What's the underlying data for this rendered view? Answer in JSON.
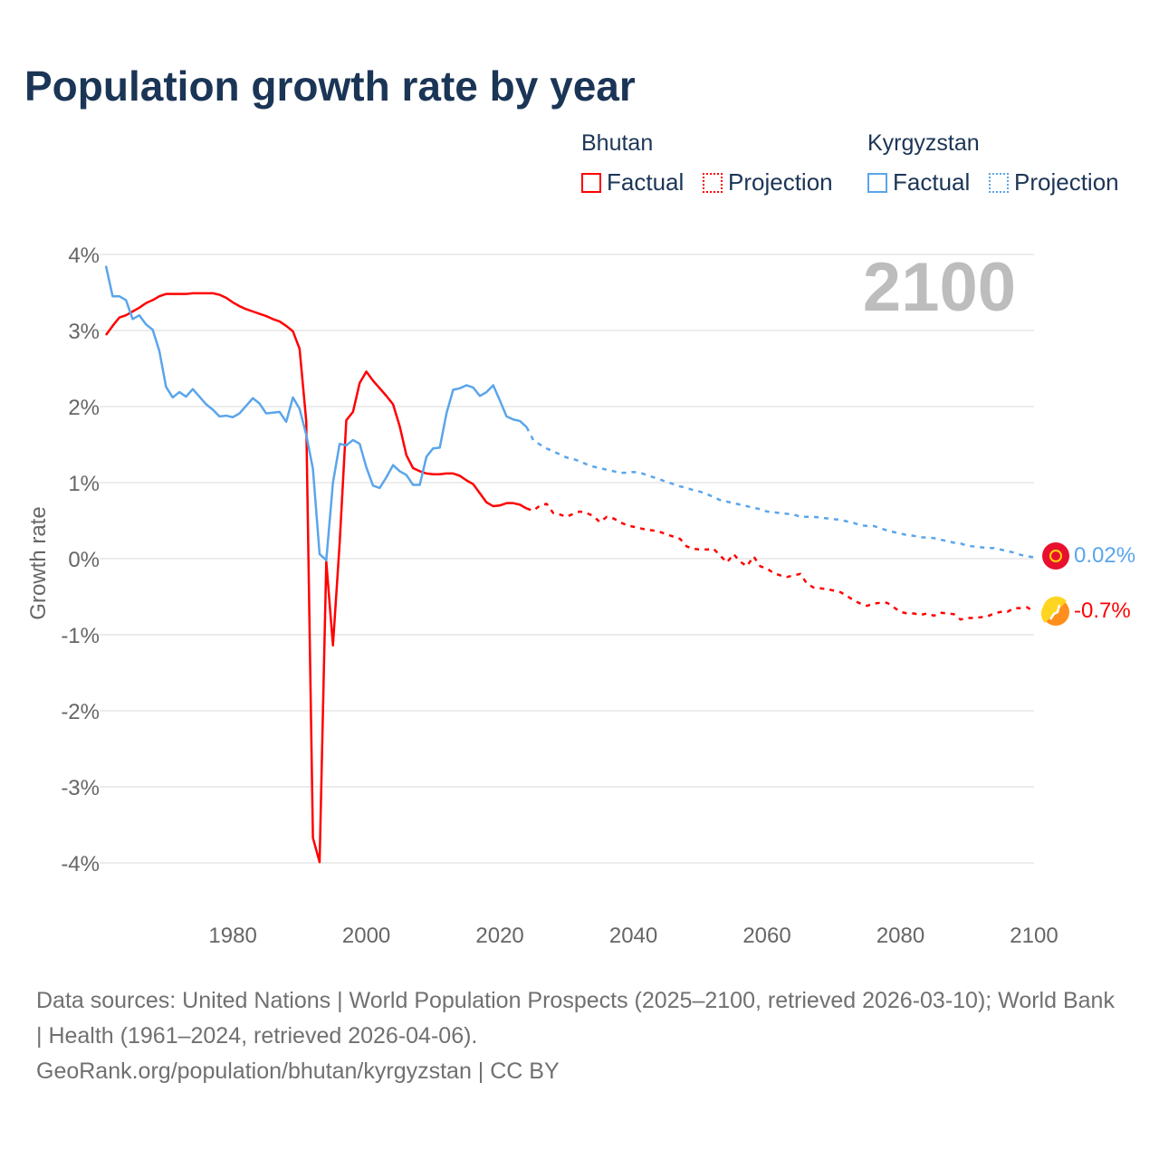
{
  "title": "Population growth rate by year",
  "current_year": "2100",
  "legend": {
    "groups": [
      {
        "name": "Bhutan",
        "color": "#ff0000",
        "factual": "Factual",
        "projection": "Projection"
      },
      {
        "name": "Kyrgyzstan",
        "color": "#5aa5eb",
        "factual": "Factual",
        "projection": "Projection"
      }
    ]
  },
  "end_labels": {
    "kyrgyzstan": "0.02%",
    "bhutan": "-0.7%"
  },
  "footer": {
    "sources": "Data sources: United Nations | World Population Prospects (2025–2100, retrieved 2026-03-10); World Bank | Health (1961–2024, retrieved 2026-04-06).",
    "credit": "GeoRank.org/population/bhutan/kyrgyzstan | CC BY"
  },
  "chart_data": {
    "type": "line",
    "title": "Population growth rate by year",
    "xlabel": "",
    "ylabel": "Growth rate",
    "xlim": [
      1961,
      2100
    ],
    "ylim": [
      -4,
      4
    ],
    "x_ticks": [
      "1980",
      "2000",
      "2020",
      "2040",
      "2060",
      "2080",
      "2100"
    ],
    "y_ticks": [
      "4%",
      "3%",
      "2%",
      "1%",
      "0%",
      "-1%",
      "-2%",
      "-3%",
      "-4%"
    ],
    "grid": true,
    "legend_position": "top-right",
    "series": [
      {
        "name": "Bhutan Factual",
        "color": "#ff0000",
        "style": "solid",
        "start_year": 1961,
        "values": [
          2.94,
          3.06,
          3.17,
          3.2,
          3.25,
          3.3,
          3.36,
          3.4,
          3.45,
          3.48,
          3.48,
          3.48,
          3.48,
          3.49,
          3.49,
          3.49,
          3.49,
          3.47,
          3.43,
          3.37,
          3.32,
          3.28,
          3.25,
          3.22,
          3.19,
          3.15,
          3.12,
          3.06,
          2.99,
          2.76,
          1.81,
          -3.67,
          -3.99,
          -0.04,
          -1.14,
          0.2,
          1.82,
          1.93,
          2.31,
          2.46,
          2.34,
          2.24,
          2.14,
          2.03,
          1.74,
          1.36,
          1.19,
          1.15,
          1.12,
          1.11,
          1.11,
          1.12,
          1.12,
          1.09,
          1.03,
          0.98,
          0.86,
          0.74,
          0.69,
          0.7,
          0.73,
          0.73,
          0.71,
          0.66
        ]
      },
      {
        "name": "Bhutan Projection",
        "color": "#ff0000",
        "style": "dotted",
        "start_year": 2025,
        "values": [
          0.63,
          0.7,
          0.72,
          0.6,
          0.58,
          0.55,
          0.59,
          0.62,
          0.6,
          0.56,
          0.48,
          0.55,
          0.53,
          0.48,
          0.44,
          0.42,
          0.4,
          0.38,
          0.37,
          0.35,
          0.32,
          0.29,
          0.26,
          0.16,
          0.13,
          0.12,
          0.12,
          0.13,
          0.04,
          -0.05,
          0.06,
          -0.04,
          -0.1,
          0.03,
          -0.1,
          -0.13,
          -0.19,
          -0.22,
          -0.24,
          -0.22,
          -0.2,
          -0.33,
          -0.38,
          -0.39,
          -0.4,
          -0.42,
          -0.44,
          -0.49,
          -0.55,
          -0.59,
          -0.62,
          -0.59,
          -0.58,
          -0.58,
          -0.64,
          -0.7,
          -0.72,
          -0.72,
          -0.74,
          -0.72,
          -0.75,
          -0.71,
          -0.72,
          -0.73,
          -0.8,
          -0.78,
          -0.78,
          -0.77,
          -0.76,
          -0.72,
          -0.7,
          -0.7,
          -0.65,
          -0.65,
          -0.64,
          -0.7
        ]
      },
      {
        "name": "Kyrgyzstan Factual",
        "color": "#5aa5eb",
        "style": "solid",
        "start_year": 1961,
        "values": [
          3.85,
          3.45,
          3.45,
          3.4,
          3.15,
          3.2,
          3.08,
          3.01,
          2.73,
          2.26,
          2.12,
          2.19,
          2.13,
          2.23,
          2.13,
          2.03,
          1.96,
          1.87,
          1.88,
          1.86,
          1.91,
          2.01,
          2.11,
          2.04,
          1.91,
          1.92,
          1.93,
          1.8,
          2.12,
          1.97,
          1.63,
          1.18,
          0.06,
          -0.02,
          1.0,
          1.51,
          1.49,
          1.56,
          1.51,
          1.2,
          0.96,
          0.93,
          1.07,
          1.23,
          1.15,
          1.1,
          0.97,
          0.97,
          1.34,
          1.45,
          1.46,
          1.91,
          2.22,
          2.24,
          2.28,
          2.25,
          2.14,
          2.19,
          2.28,
          2.08,
          1.87,
          1.83,
          1.81,
          1.73
        ]
      },
      {
        "name": "Kyrgyzstan Projection",
        "color": "#5aa5eb",
        "style": "dotted",
        "start_year": 2025,
        "values": [
          1.56,
          1.5,
          1.45,
          1.41,
          1.37,
          1.33,
          1.31,
          1.28,
          1.24,
          1.21,
          1.19,
          1.17,
          1.15,
          1.13,
          1.13,
          1.14,
          1.13,
          1.1,
          1.07,
          1.04,
          1.01,
          0.98,
          0.95,
          0.93,
          0.9,
          0.88,
          0.85,
          0.81,
          0.77,
          0.75,
          0.73,
          0.71,
          0.69,
          0.67,
          0.65,
          0.62,
          0.61,
          0.6,
          0.59,
          0.58,
          0.55,
          0.55,
          0.55,
          0.54,
          0.53,
          0.52,
          0.51,
          0.49,
          0.47,
          0.44,
          0.43,
          0.43,
          0.4,
          0.37,
          0.35,
          0.33,
          0.31,
          0.3,
          0.28,
          0.28,
          0.27,
          0.25,
          0.23,
          0.21,
          0.2,
          0.17,
          0.16,
          0.15,
          0.14,
          0.14,
          0.12,
          0.1,
          0.08,
          0.05,
          0.03,
          0.02
        ]
      }
    ]
  }
}
